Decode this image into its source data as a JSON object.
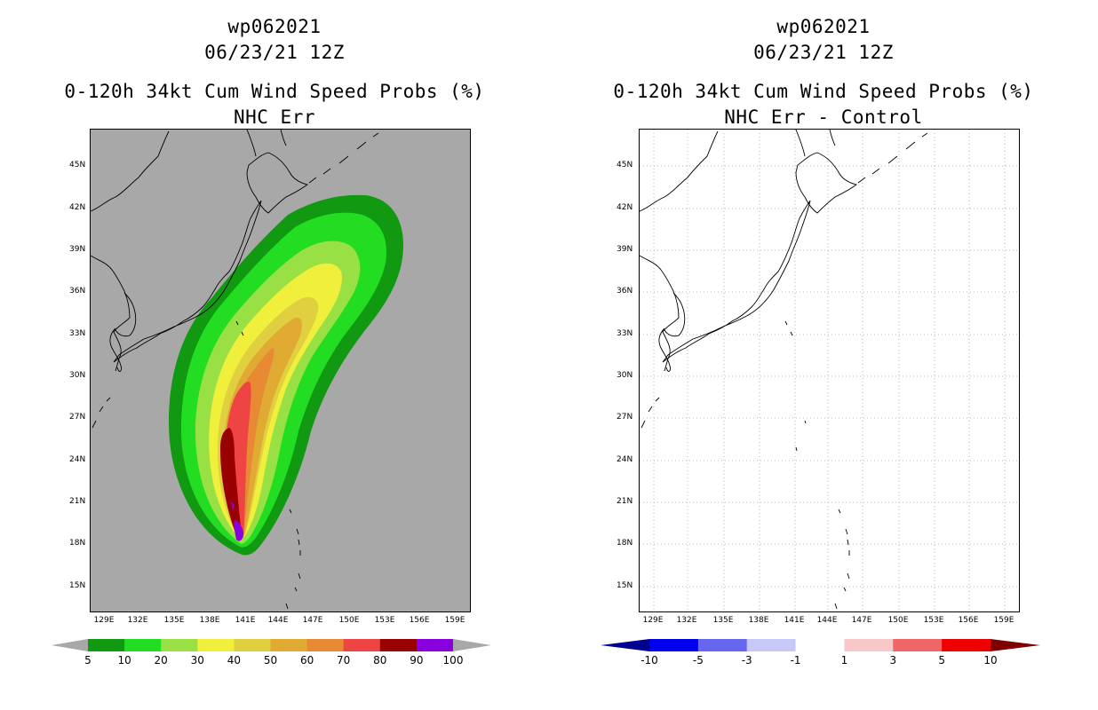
{
  "panels": [
    {
      "title1": "wp062021",
      "title2": "06/23/21 12Z",
      "title3": "0-120h 34kt Cum Wind Speed Probs (%)",
      "title4": "NHC Err"
    },
    {
      "title1": "wp062021",
      "title2": "06/23/21 12Z",
      "title3": "0-120h 34kt Cum Wind Speed Probs (%)",
      "title4": "NHC Err - Control"
    }
  ],
  "lat_labels": [
    "45N",
    "42N",
    "39N",
    "36N",
    "33N",
    "30N",
    "27N",
    "24N",
    "21N",
    "18N",
    "15N"
  ],
  "lon_labels": [
    "129E",
    "132E",
    "135E",
    "138E",
    "141E",
    "144E",
    "147E",
    "150E",
    "153E",
    "156E",
    "159E"
  ],
  "prob_colorbar": {
    "labels": [
      "5",
      "10",
      "20",
      "30",
      "40",
      "50",
      "60",
      "70",
      "80",
      "90",
      "100"
    ],
    "colors": [
      "#119911",
      "#22dd22",
      "#99e044",
      "#f0f03c",
      "#e0d040",
      "#e0aa33",
      "#e88a33",
      "#ee4444",
      "#990000",
      "#8800dd"
    ],
    "end_color": "#a8a8a8"
  },
  "diff_colorbar": {
    "labels": [
      "-10",
      "-5",
      "-3",
      "-1",
      "1",
      "3",
      "5",
      "10"
    ],
    "colors": [
      "#0000ee",
      "#6666ee",
      "#c8c8f8",
      "#ffffff",
      "#f8c8c8",
      "#ee6666",
      "#ee0000"
    ],
    "low_color": "#000090",
    "high_color": "#800000"
  },
  "map_colors": {
    "land_ocean_bg": "#a8a8a8",
    "diff_bg": "#ffffff",
    "coast": "#000000"
  }
}
